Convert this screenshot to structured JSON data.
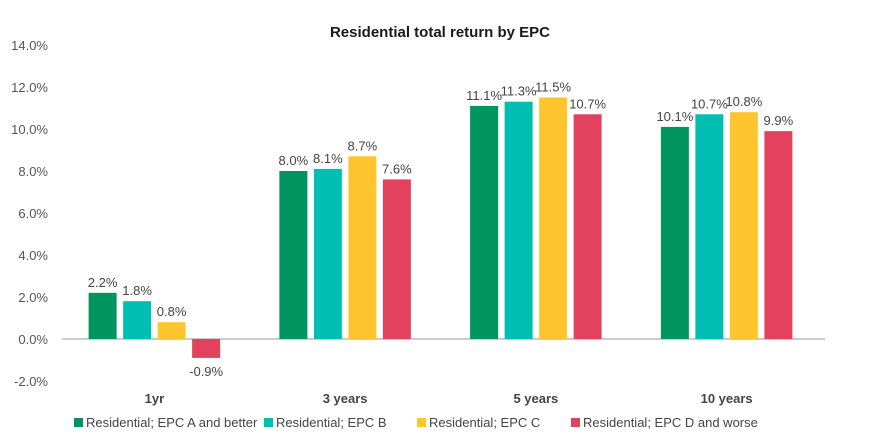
{
  "chart_data": {
    "type": "bar",
    "title": "Residential total return by EPC",
    "xlabel": "",
    "ylabel": "",
    "ylim": [
      -2,
      14
    ],
    "yticks": [
      "14.0%",
      "12.0%",
      "10.0%",
      "8.0%",
      "6.0%",
      "4.0%",
      "2.0%",
      "0.0%",
      "-2.0%"
    ],
    "ytick_values": [
      14,
      12,
      10,
      8,
      6,
      4,
      2,
      0,
      -2
    ],
    "categories": [
      "1yr",
      "3 years",
      "5 years",
      "10 years"
    ],
    "legend_position": "bottom",
    "grid": false,
    "series": [
      {
        "name": "Residential; EPC A and better",
        "color": "#009460",
        "values": [
          2.2,
          8.0,
          11.1,
          10.1
        ],
        "labels": [
          "2.2%",
          "8.0%",
          "11.1%",
          "10.1%"
        ]
      },
      {
        "name": "Residential; EPC B",
        "color": "#00BFB2",
        "values": [
          1.8,
          8.1,
          11.3,
          10.7
        ],
        "labels": [
          "1.8%",
          "8.1%",
          "11.3%",
          "10.7%"
        ]
      },
      {
        "name": "Residential; EPC C",
        "color": "#FFC52F",
        "values": [
          0.8,
          8.7,
          11.5,
          10.8
        ],
        "labels": [
          "0.8%",
          "8.7%",
          "11.5%",
          "10.8%"
        ]
      },
      {
        "name": "Residential; EPC D and worse",
        "color": "#E3425F",
        "values": [
          -0.9,
          7.6,
          10.7,
          9.9
        ],
        "labels": [
          "-0.9%",
          "7.6%",
          "10.7%",
          "9.9%"
        ]
      }
    ]
  }
}
